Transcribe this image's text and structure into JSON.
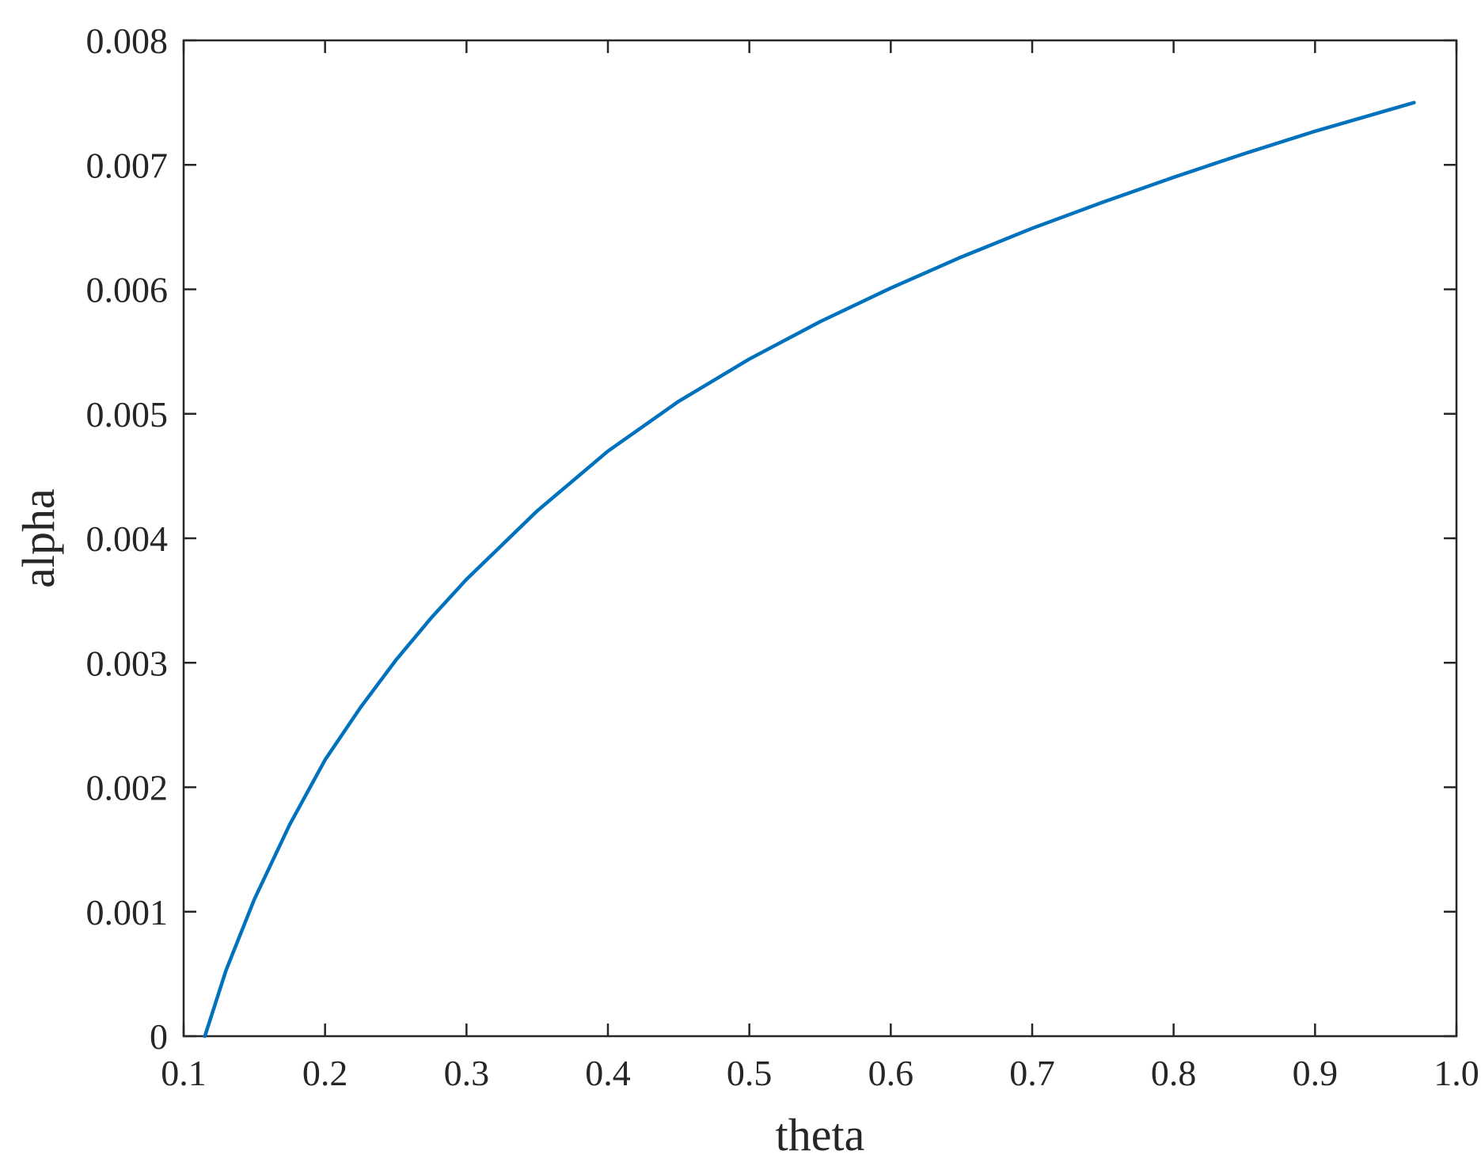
{
  "chart_data": {
    "type": "line",
    "title": "",
    "xlabel": "theta",
    "ylabel": "alpha",
    "xlim": [
      0.1,
      1.0
    ],
    "ylim": [
      0,
      0.008
    ],
    "grid": false,
    "x_ticks": [
      "0.1",
      "0.2",
      "0.3",
      "0.4",
      "0.5",
      "0.6",
      "0.7",
      "0.8",
      "0.9",
      "1.0"
    ],
    "y_ticks": [
      "0",
      "0.001",
      "0.002",
      "0.003",
      "0.004",
      "0.005",
      "0.006",
      "0.007",
      "0.008"
    ],
    "series": [
      {
        "color": "#0072bd",
        "x": [
          0.115,
          0.13,
          0.15,
          0.175,
          0.2,
          0.225,
          0.25,
          0.275,
          0.3,
          0.35,
          0.4,
          0.45,
          0.5,
          0.55,
          0.6,
          0.65,
          0.7,
          0.75,
          0.8,
          0.85,
          0.9,
          0.97
        ],
        "y": [
          0.0,
          0.00053,
          0.0011,
          0.0017,
          0.00222,
          0.00264,
          0.00302,
          0.00336,
          0.00367,
          0.00422,
          0.0047,
          0.0051,
          0.00544,
          0.00574,
          0.00601,
          0.00626,
          0.00649,
          0.0067,
          0.0069,
          0.00709,
          0.00727,
          0.0075
        ]
      }
    ]
  }
}
